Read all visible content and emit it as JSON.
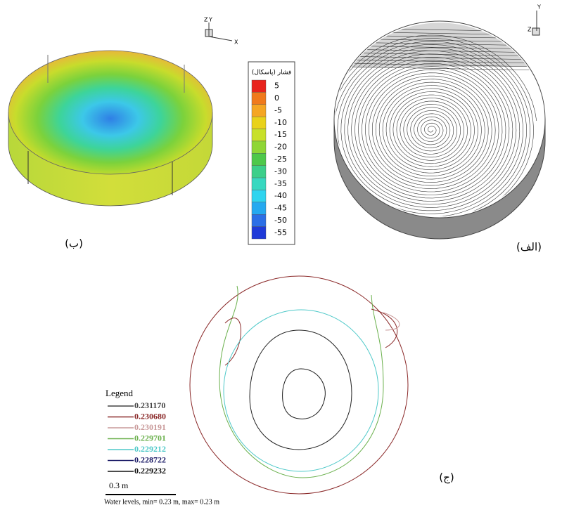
{
  "panel_b": {
    "label": "(ب)",
    "axes": {
      "z": "Z",
      "y": "Y",
      "x": "X"
    }
  },
  "panel_a": {
    "label": "(الف)",
    "axes": {
      "y": "Y",
      "z": "Z"
    }
  },
  "colorbar": {
    "title": "فشار (پاسکال)",
    "levels": [
      {
        "value": 5,
        "color": "#e8231d"
      },
      {
        "value": 0,
        "color": "#f07a1c"
      },
      {
        "value": -5,
        "color": "#f5a623"
      },
      {
        "value": -10,
        "color": "#e9d21a"
      },
      {
        "value": -15,
        "color": "#c8e02a"
      },
      {
        "value": -20,
        "color": "#8fd636"
      },
      {
        "value": -25,
        "color": "#4ec84a"
      },
      {
        "value": -30,
        "color": "#3ccf8a"
      },
      {
        "value": -35,
        "color": "#37d8c0"
      },
      {
        "value": -40,
        "color": "#2fd4ef"
      },
      {
        "value": -45,
        "color": "#25a9f0"
      },
      {
        "value": -50,
        "color": "#2c6fe6"
      },
      {
        "value": -55,
        "color": "#1f3ad8"
      }
    ]
  },
  "panel_c": {
    "label": "(ج)",
    "legend_title": "Legend",
    "legend": [
      {
        "label": "0.231170",
        "color": "#444444"
      },
      {
        "label": "0.230680",
        "color": "#8b2a2a"
      },
      {
        "label": "0.230191",
        "color": "#c99a9a"
      },
      {
        "label": "0.229701",
        "color": "#6ab04c"
      },
      {
        "label": "0.229212",
        "color": "#4fc9c9"
      },
      {
        "label": "0.228722",
        "color": "#1a1a66"
      },
      {
        "label": "0.229232",
        "color": "#111111"
      }
    ],
    "scale": "0.3 m",
    "caption": "Water levels, min= 0.23 m, max= 0.23 m"
  }
}
